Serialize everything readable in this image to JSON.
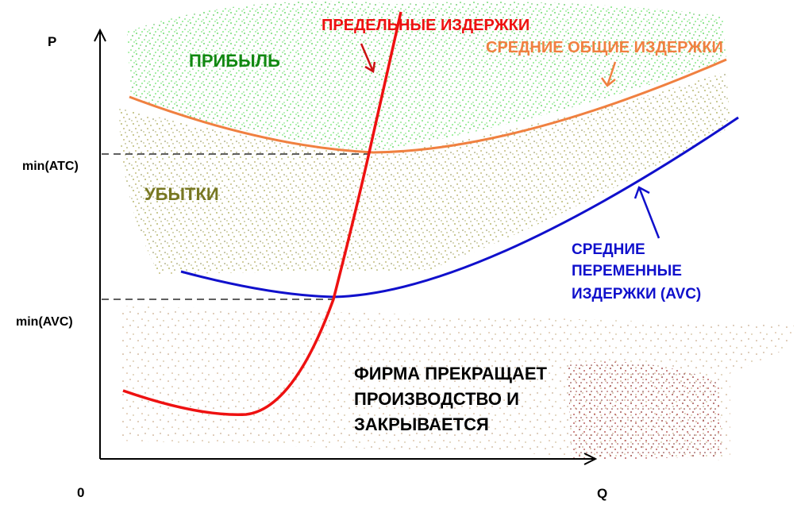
{
  "axes": {
    "y_label": "P",
    "x_label": "Q",
    "origin": "0",
    "y_marks": [
      "min(ATC)",
      "min(AVC)"
    ]
  },
  "regions": {
    "profit": "ПРИБЫЛЬ",
    "loss": "УБЫТКИ",
    "shutdown": [
      "ФИРМА ПРЕКРАЩАЕТ",
      "ПРОИЗВОДСТВО И",
      "ЗАКРЫВАЕТСЯ"
    ]
  },
  "curves": {
    "mc": "ПРЕДЕЛЬНЫЕ ИЗДЕРЖКИ",
    "atc": "СРЕДНИЕ ОБЩИЕ ИЗДЕРЖКИ",
    "avc": [
      "СРЕДНИЕ",
      "ПЕРЕМЕННЫЕ",
      "ИЗДЕРЖКИ (AVC)"
    ]
  }
}
